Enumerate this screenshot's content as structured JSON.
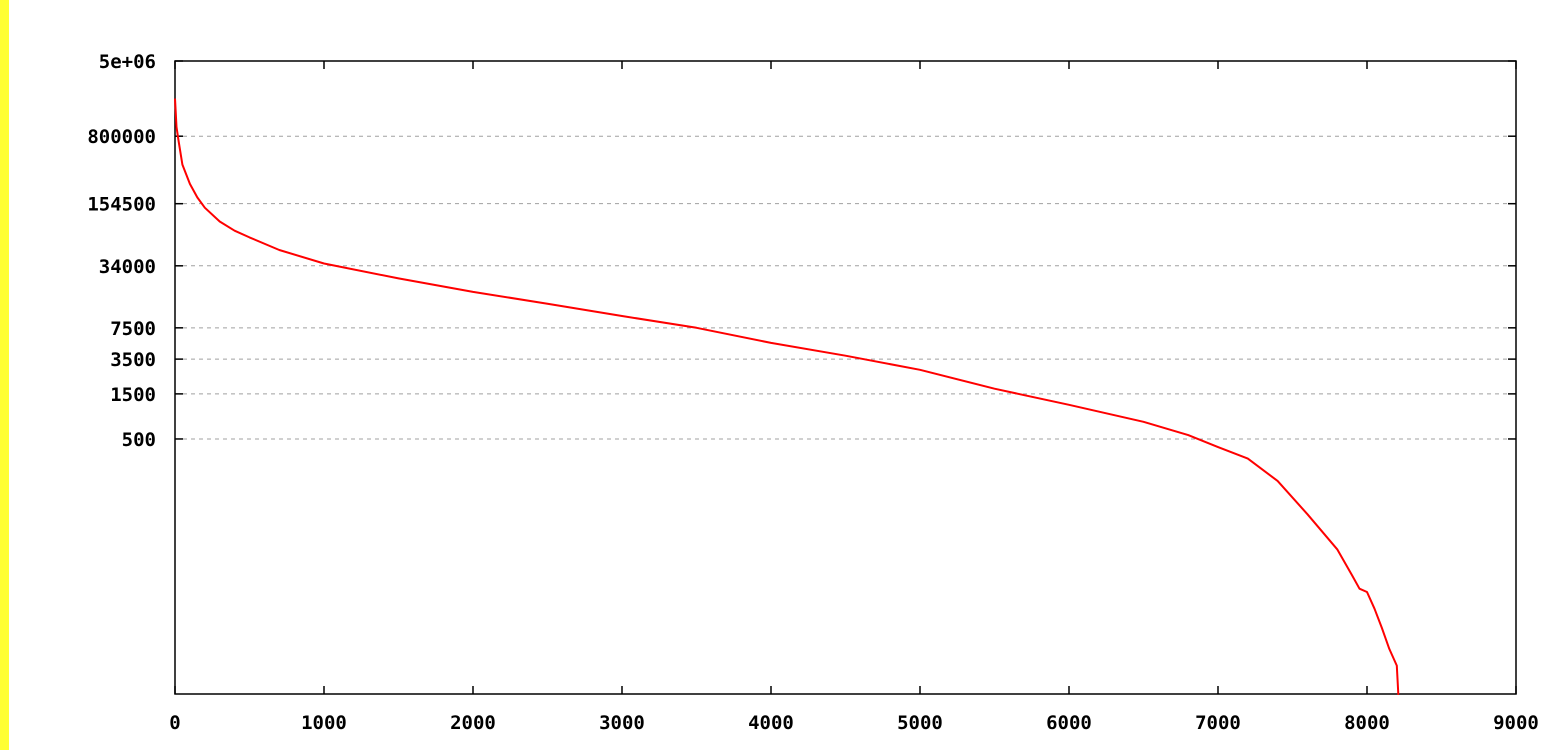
{
  "chart_data": {
    "type": "line",
    "title": "",
    "xlabel": "",
    "ylabel": "",
    "xlim": [
      0,
      9000
    ],
    "y_scale": "log",
    "ylim": [
      1,
      5000000
    ],
    "x_ticks": [
      0,
      1000,
      2000,
      3000,
      4000,
      5000,
      6000,
      7000,
      8000,
      9000
    ],
    "x_tick_labels": [
      "0",
      "1000",
      "2000",
      "3000",
      "4000",
      "5000",
      "6000",
      "7000",
      "8000",
      "9000"
    ],
    "y_ticks": [
      500,
      1500,
      3500,
      7500,
      34000,
      154500,
      800000,
      5000000
    ],
    "y_tick_labels": [
      "500",
      "1500",
      "3500",
      "7500",
      "34000",
      "154500",
      "800000",
      "5e+06"
    ],
    "grid": "horizontal dashed at y ticks",
    "legend": "none",
    "series": [
      {
        "color": "#ff0000",
        "x": [
          0,
          10,
          25,
          50,
          100,
          150,
          200,
          300,
          400,
          500,
          700,
          1000,
          1500,
          2000,
          2500,
          3000,
          3500,
          4000,
          4500,
          5000,
          5500,
          6000,
          6500,
          6800,
          7000,
          7200,
          7400,
          7600,
          7800,
          7900,
          7950,
          8000,
          8050,
          8100,
          8150,
          8200,
          8210,
          8215
        ],
        "y": [
          2000000,
          1000000,
          700000,
          400000,
          250000,
          180000,
          140000,
          100000,
          80000,
          68000,
          50000,
          36000,
          25000,
          18000,
          13500,
          10000,
          7500,
          5200,
          3800,
          2700,
          1700,
          1150,
          760,
          550,
          410,
          310,
          180,
          80,
          34,
          18,
          13,
          12,
          8,
          5,
          3,
          2,
          1,
          1
        ]
      }
    ]
  }
}
